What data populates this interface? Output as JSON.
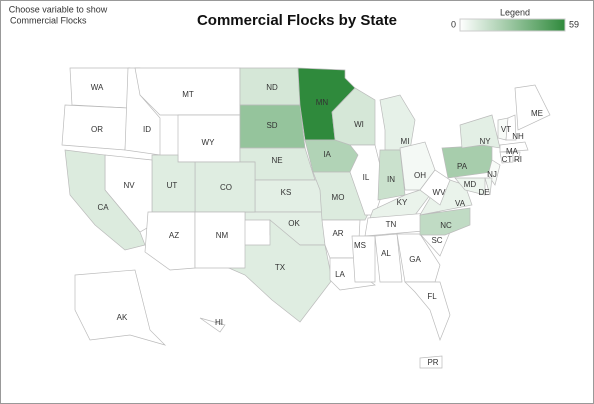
{
  "title": "Commercial Flocks by State",
  "control": {
    "label": "Choose variable to show",
    "value": "Commercial Flocks"
  },
  "legend": {
    "title": "Legend",
    "min": 0,
    "max": 59,
    "colors": [
      "#ffffff",
      "#2f8a3c"
    ]
  },
  "states": [
    {
      "label": "WA",
      "value": 0
    },
    {
      "label": "OR",
      "value": 0
    },
    {
      "label": "ID",
      "value": 0
    },
    {
      "label": "MT",
      "value": 0
    },
    {
      "label": "WY",
      "value": 0
    },
    {
      "label": "ND",
      "value": 12
    },
    {
      "label": "SD",
      "value": 30
    },
    {
      "label": "NE",
      "value": 10
    },
    {
      "label": "KS",
      "value": 8
    },
    {
      "label": "OK",
      "value": 8
    },
    {
      "label": "TX",
      "value": 9
    },
    {
      "label": "CO",
      "value": 9
    },
    {
      "label": "UT",
      "value": 9
    },
    {
      "label": "NV",
      "value": 0
    },
    {
      "label": "CA",
      "value": 10
    },
    {
      "label": "AZ",
      "value": 0
    },
    {
      "label": "NM",
      "value": 0
    },
    {
      "label": "MN",
      "value": 59
    },
    {
      "label": "IA",
      "value": 22
    },
    {
      "label": "MO",
      "value": 10
    },
    {
      "label": "AR",
      "value": 0
    },
    {
      "label": "LA",
      "value": 0
    },
    {
      "label": "WI",
      "value": 12
    },
    {
      "label": "IL",
      "value": 0
    },
    {
      "label": "MI",
      "value": 7
    },
    {
      "label": "IN",
      "value": 15
    },
    {
      "label": "OH",
      "value": 3
    },
    {
      "label": "KY",
      "value": 6
    },
    {
      "label": "TN",
      "value": 0
    },
    {
      "label": "MS",
      "value": 0
    },
    {
      "label": "AL",
      "value": 0
    },
    {
      "label": "GA",
      "value": 0
    },
    {
      "label": "FL",
      "value": 0
    },
    {
      "label": "SC",
      "value": 0
    },
    {
      "label": "NC",
      "value": 18
    },
    {
      "label": "VA",
      "value": 6
    },
    {
      "label": "WV",
      "value": 0
    },
    {
      "label": "PA",
      "value": 25
    },
    {
      "label": "NY",
      "value": 8
    },
    {
      "label": "NJ",
      "value": 2
    },
    {
      "label": "DE",
      "value": 4
    },
    {
      "label": "MD",
      "value": 5
    },
    {
      "label": "VT",
      "value": 2
    },
    {
      "label": "NH",
      "value": 0
    },
    {
      "label": "ME",
      "value": 0
    },
    {
      "label": "MA",
      "value": 0
    },
    {
      "label": "CT",
      "value": 0
    },
    {
      "label": "RI",
      "value": 0
    },
    {
      "label": "AK",
      "value": 0
    },
    {
      "label": "HI",
      "value": 0
    },
    {
      "label": "PR",
      "value": 0
    }
  ]
}
